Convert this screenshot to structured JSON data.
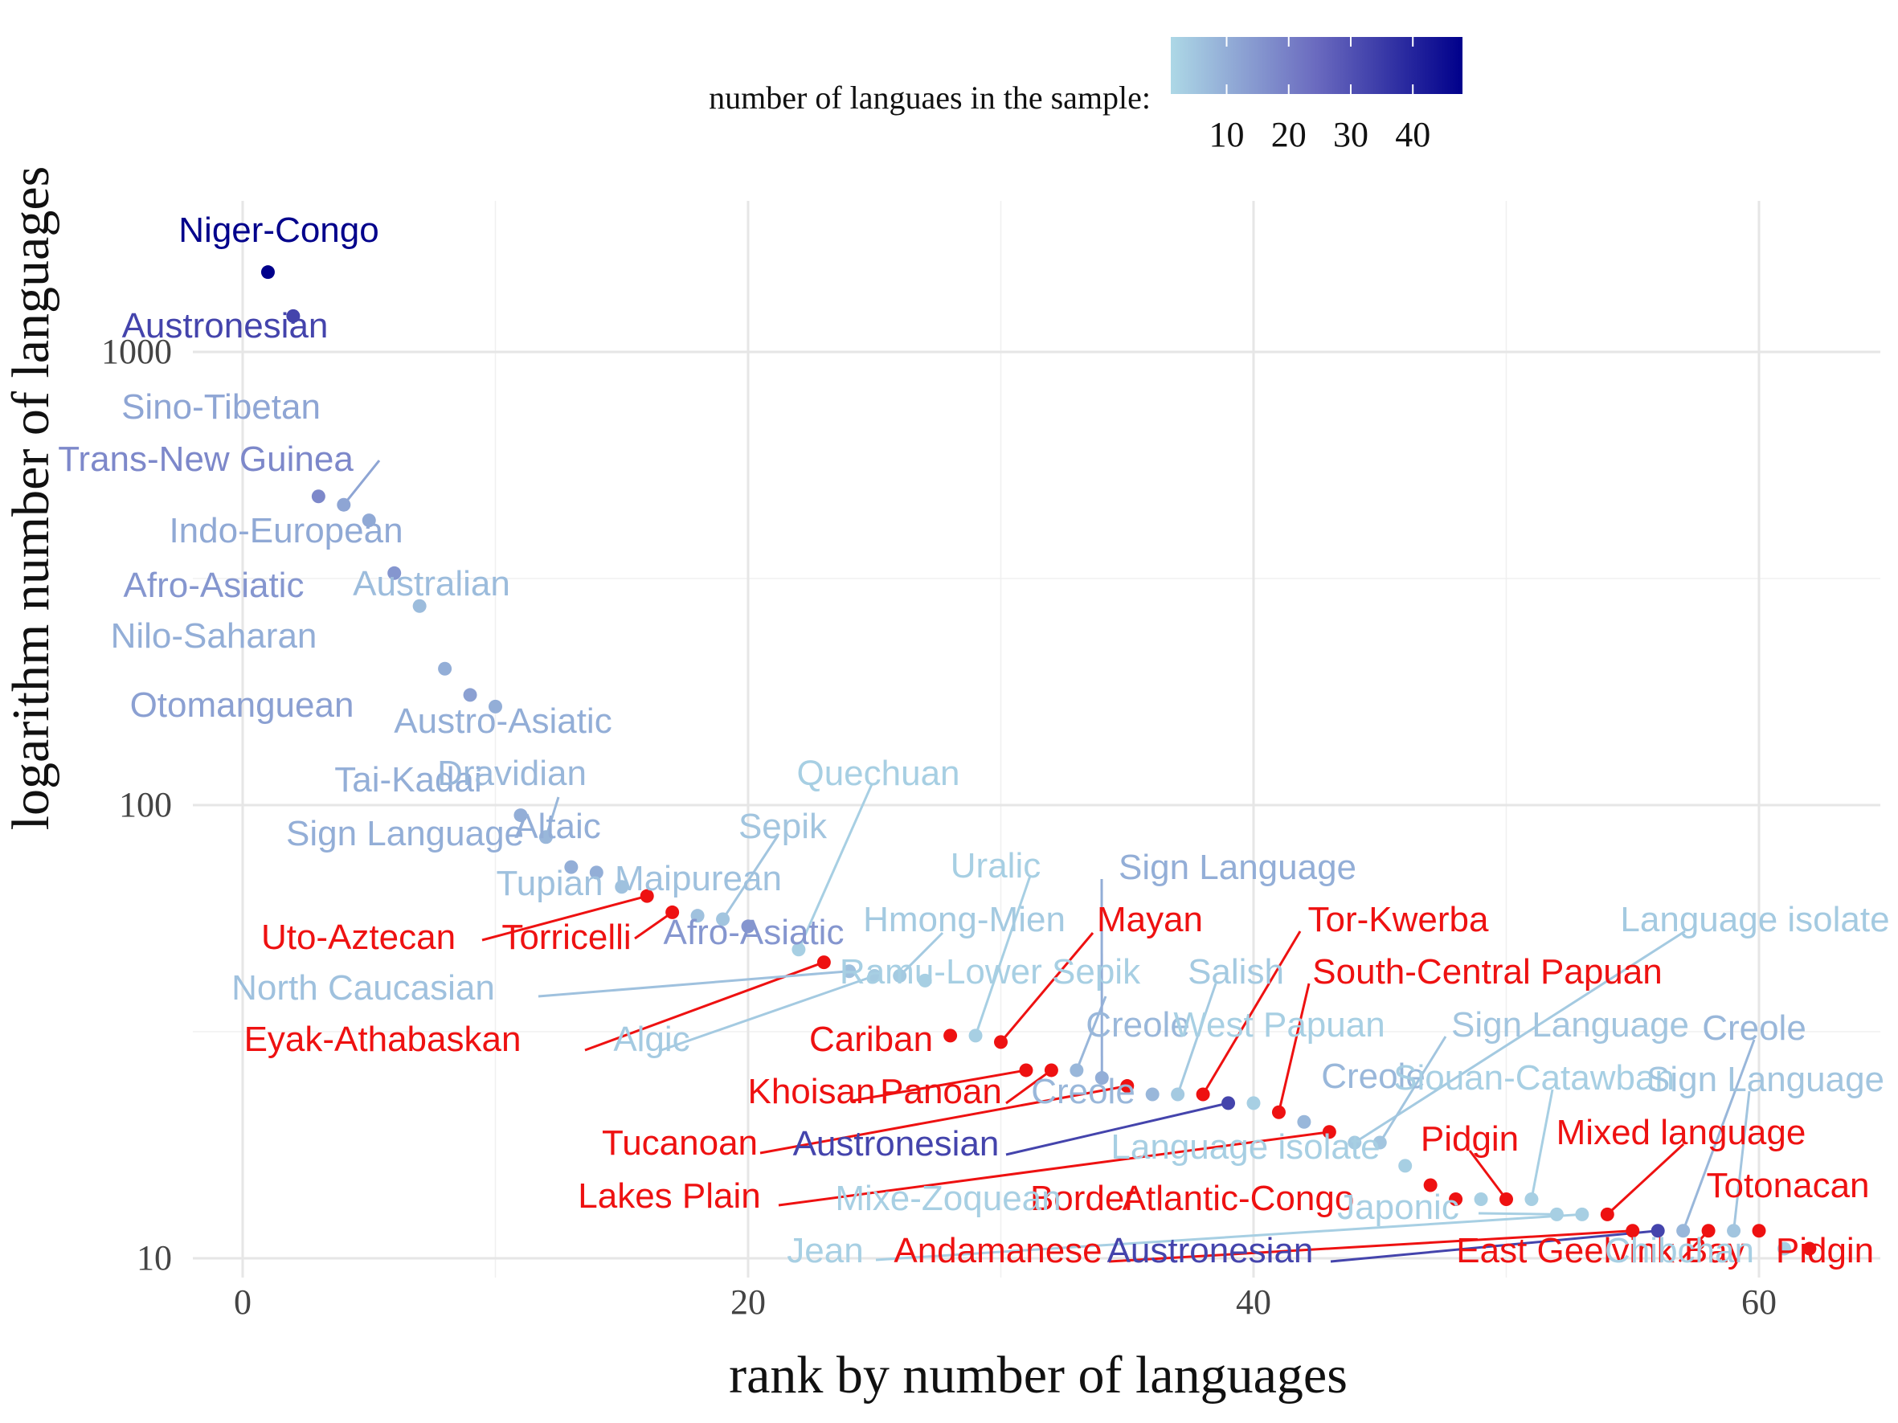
{
  "chart_data": {
    "type": "scatter",
    "xlabel": "rank by number of languages",
    "ylabel": "logarithm number of languages",
    "y_scale": "log10",
    "xlim": [
      -2,
      65
    ],
    "ylim": [
      8.5,
      1800
    ],
    "x_ticks": [
      0,
      20,
      40,
      60
    ],
    "x_tick_labels": [
      "0",
      "20",
      "40",
      "60"
    ],
    "y_ticks": [
      10,
      100,
      1000
    ],
    "y_tick_labels": [
      "10",
      "100",
      "1000"
    ],
    "grid": true,
    "legend": {
      "title": "number of languaes in the sample:",
      "position": "top",
      "type": "colorbar",
      "tick_values": [
        10,
        20,
        30,
        40
      ],
      "tick_labels": [
        "10",
        "20",
        "30",
        "40"
      ],
      "range": [
        1,
        48
      ],
      "color_low": "#add8e6",
      "color_high": "#00008b"
    },
    "highlight_color": "#ee1111",
    "points": [
      {
        "x": 1,
        "y": 1500,
        "label": "Niger-Congo",
        "sample": 48,
        "highlight": false
      },
      {
        "x": 2,
        "y": 1200,
        "label": "Austronesian",
        "sample": 33,
        "highlight": false
      },
      {
        "x": 3,
        "y": 480,
        "label": "Trans-New Guinea",
        "sample": 18,
        "highlight": false
      },
      {
        "x": 4,
        "y": 460,
        "label": "Sino-Tibetan",
        "sample": 12,
        "highlight": false
      },
      {
        "x": 5,
        "y": 425,
        "label": "Indo-European",
        "sample": 11,
        "highlight": false
      },
      {
        "x": 6,
        "y": 325,
        "label": "Afro-Asiatic",
        "sample": 15,
        "highlight": false
      },
      {
        "x": 7,
        "y": 275,
        "label": "Australian",
        "sample": 7,
        "highlight": false
      },
      {
        "x": 8,
        "y": 200,
        "label": "Nilo-Saharan",
        "sample": 10,
        "highlight": false
      },
      {
        "x": 9,
        "y": 175,
        "label": "Otomanguean",
        "sample": 13,
        "highlight": false
      },
      {
        "x": 10,
        "y": 165,
        "label": "Austro-Asiatic",
        "sample": 10,
        "highlight": false
      },
      {
        "x": 11,
        "y": 95,
        "label": "Tai-Kadai",
        "sample": 10,
        "highlight": false
      },
      {
        "x": 12,
        "y": 85,
        "label": "Dravidian",
        "sample": 8,
        "highlight": false
      },
      {
        "x": 13,
        "y": 73,
        "label": "Sign Language",
        "sample": 10,
        "highlight": false
      },
      {
        "x": 14,
        "y": 71,
        "label": "Altaic",
        "sample": 10,
        "highlight": false
      },
      {
        "x": 15,
        "y": 66,
        "label": "Tupian",
        "sample": 6,
        "highlight": false
      },
      {
        "x": 16,
        "y": 63,
        "label": "Uto-Aztecan",
        "sample": 0,
        "highlight": true
      },
      {
        "x": 17,
        "y": 58,
        "label": "Torricelli",
        "sample": 0,
        "highlight": true
      },
      {
        "x": 18,
        "y": 57,
        "label": "Maipurean",
        "sample": 6,
        "highlight": false
      },
      {
        "x": 19,
        "y": 56,
        "label": "Sepik",
        "sample": 5,
        "highlight": false
      },
      {
        "x": 20,
        "y": 54,
        "label": "Afro-Asiatic",
        "sample": 15,
        "highlight": false
      },
      {
        "x": 22,
        "y": 48,
        "label": "Quechuan",
        "sample": 3,
        "highlight": false
      },
      {
        "x": 23,
        "y": 45,
        "label": "Eyak-Athabaskan",
        "sample": 0,
        "highlight": true
      },
      {
        "x": 24,
        "y": 43,
        "label": "North Caucasian",
        "sample": 6,
        "highlight": false
      },
      {
        "x": 25,
        "y": 42,
        "label": "Algic",
        "sample": 4,
        "highlight": false
      },
      {
        "x": 26,
        "y": 42,
        "label": "Hmong-Mien",
        "sample": 4,
        "highlight": false
      },
      {
        "x": 27,
        "y": 41,
        "label": "Ramu-Lower Sepik",
        "sample": 3,
        "highlight": false
      },
      {
        "x": 28,
        "y": 31,
        "label": "Cariban",
        "sample": 0,
        "highlight": true
      },
      {
        "x": 29,
        "y": 31,
        "label": "Uralic",
        "sample": 3,
        "highlight": false
      },
      {
        "x": 30,
        "y": 30,
        "label": "Mayan",
        "sample": 0,
        "highlight": true
      },
      {
        "x": 31,
        "y": 26,
        "label": "Khoisan",
        "sample": 0,
        "highlight": true
      },
      {
        "x": 32,
        "y": 26,
        "label": "Panoan",
        "sample": 0,
        "highlight": true
      },
      {
        "x": 33,
        "y": 26,
        "label": "Creole",
        "sample": 8,
        "highlight": false
      },
      {
        "x": 34,
        "y": 25,
        "label": "Sign Language",
        "sample": 10,
        "highlight": false
      },
      {
        "x": 35,
        "y": 24,
        "label": "Tucanoan",
        "sample": 0,
        "highlight": true
      },
      {
        "x": 36,
        "y": 23,
        "label": "Creole",
        "sample": 8,
        "highlight": false
      },
      {
        "x": 37,
        "y": 23,
        "label": "Salish",
        "sample": 4,
        "highlight": false
      },
      {
        "x": 38,
        "y": 23,
        "label": "Tor-Kwerba",
        "sample": 0,
        "highlight": true
      },
      {
        "x": 39,
        "y": 22,
        "label": "Austronesian",
        "sample": 33,
        "highlight": false
      },
      {
        "x": 40,
        "y": 22,
        "label": "West Papuan",
        "sample": 3,
        "highlight": false
      },
      {
        "x": 41,
        "y": 21,
        "label": "South-Central Papuan",
        "sample": 0,
        "highlight": true
      },
      {
        "x": 42,
        "y": 20,
        "label": "Creole",
        "sample": 8,
        "highlight": false
      },
      {
        "x": 43,
        "y": 19,
        "label": "Lakes Plain",
        "sample": 0,
        "highlight": true
      },
      {
        "x": 44,
        "y": 18,
        "label": "Language isolate",
        "sample": 4,
        "highlight": false
      },
      {
        "x": 45,
        "y": 18,
        "label": "Sign Language",
        "sample": 5,
        "highlight": false
      },
      {
        "x": 46,
        "y": 16,
        "label": "Language isolate",
        "sample": 3,
        "highlight": false
      },
      {
        "x": 47,
        "y": 14.5,
        "label": "Border",
        "sample": 0,
        "highlight": true
      },
      {
        "x": 48,
        "y": 13.5,
        "label": "Atlantic-Congo",
        "sample": 0,
        "highlight": true
      },
      {
        "x": 49,
        "y": 13.5,
        "label": "Mixe-Zoquean",
        "sample": 3,
        "highlight": false
      },
      {
        "x": 50,
        "y": 13.5,
        "label": "Pidgin",
        "sample": 0,
        "highlight": true
      },
      {
        "x": 51,
        "y": 13.5,
        "label": "Siouan-Catawban",
        "sample": 3,
        "highlight": false
      },
      {
        "x": 52,
        "y": 12.5,
        "label": "Japonic",
        "sample": 3,
        "highlight": false
      },
      {
        "x": 53,
        "y": 12.5,
        "label": "Jean",
        "sample": 3,
        "highlight": false
      },
      {
        "x": 54,
        "y": 12.5,
        "label": "Mixed language",
        "sample": 0,
        "highlight": true
      },
      {
        "x": 55,
        "y": 11.5,
        "label": "Andamanese",
        "sample": 0,
        "highlight": true
      },
      {
        "x": 56,
        "y": 11.5,
        "label": "Austronesian",
        "sample": 33,
        "highlight": false
      },
      {
        "x": 57,
        "y": 11.5,
        "label": "Creole",
        "sample": 8,
        "highlight": false
      },
      {
        "x": 58,
        "y": 11.5,
        "label": "East Geelvink Bay",
        "sample": 0,
        "highlight": true
      },
      {
        "x": 59,
        "y": 11.5,
        "label": "Sign Language",
        "sample": 5,
        "highlight": false
      },
      {
        "x": 60,
        "y": 11.5,
        "label": "Totonacan",
        "sample": 0,
        "highlight": true
      },
      {
        "x": 61,
        "y": 10.5,
        "label": "Chibchan",
        "sample": 3,
        "highlight": false
      },
      {
        "x": 62,
        "y": 10.5,
        "label": "Pidgin",
        "sample": 0,
        "highlight": true
      }
    ]
  }
}
